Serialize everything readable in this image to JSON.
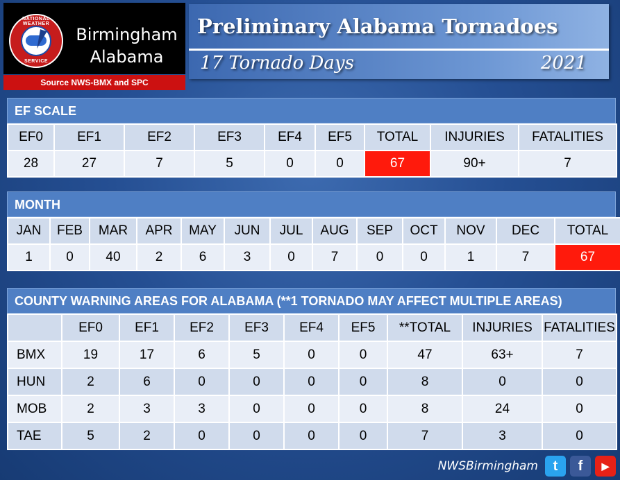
{
  "header": {
    "office_line1": "Birmingham",
    "office_line2": "Alabama",
    "seal_top": "NATIONAL WEATHER",
    "seal_bottom": "SERVICE",
    "source": "Source NWS-BMX and SPC",
    "title": "Preliminary Alabama Tornadoes",
    "subtitle": "17 Tornado Days",
    "year": "2021"
  },
  "ef_scale": {
    "heading": "EF SCALE",
    "headers": [
      "EF0",
      "EF1",
      "EF2",
      "EF3",
      "EF4",
      "EF5",
      "TOTAL",
      "INJURIES",
      "FATALITIES"
    ],
    "values": [
      "28",
      "27",
      "7",
      "5",
      "0",
      "0",
      "67",
      "90+",
      "7"
    ]
  },
  "month": {
    "heading": "MONTH",
    "headers": [
      "JAN",
      "FEB",
      "MAR",
      "APR",
      "MAY",
      "JUN",
      "JUL",
      "AUG",
      "SEP",
      "OCT",
      "NOV",
      "DEC",
      "TOTAL"
    ],
    "values": [
      "1",
      "0",
      "40",
      "2",
      "6",
      "3",
      "0",
      "7",
      "0",
      "0",
      "1",
      "7",
      "67"
    ]
  },
  "cwa": {
    "heading": "COUNTY WARNING AREAS FOR ALABAMA (**1 TORNADO MAY AFFECT MULTIPLE AREAS)",
    "headers": [
      "",
      "EF0",
      "EF1",
      "EF2",
      "EF3",
      "EF4",
      "EF5",
      "**TOTAL",
      "INJURIES",
      "FATALITIES"
    ],
    "rows": [
      [
        "BMX",
        "19",
        "17",
        "6",
        "5",
        "0",
        "0",
        "47",
        "63+",
        "7"
      ],
      [
        "HUN",
        "2",
        "6",
        "0",
        "0",
        "0",
        "0",
        "8",
        "0",
        "0"
      ],
      [
        "MOB",
        "2",
        "3",
        "3",
        "0",
        "0",
        "0",
        "8",
        "24",
        "0"
      ],
      [
        "TAE",
        "5",
        "2",
        "0",
        "0",
        "0",
        "0",
        "7",
        "3",
        "0"
      ]
    ]
  },
  "footer": {
    "handle": "NWSBirmingham",
    "social_icons": [
      "twitter-icon",
      "facebook-icon",
      "youtube-icon"
    ]
  },
  "colors": {
    "highlight_red": "#ff1a0c",
    "header_blue": "#4f7fc4",
    "source_red": "#cc1111"
  }
}
